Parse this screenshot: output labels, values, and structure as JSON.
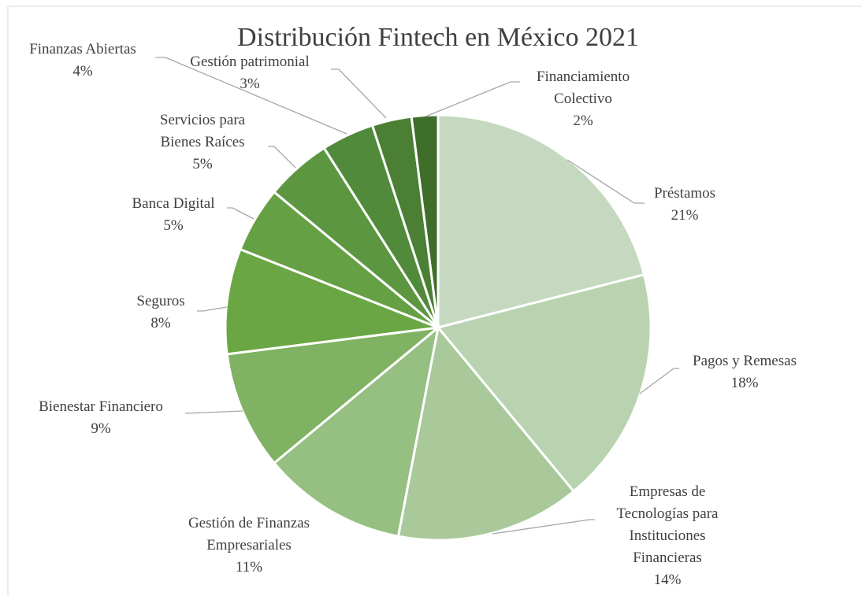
{
  "chart_data": {
    "type": "pie",
    "title": "Distribución Fintech en México 2021",
    "categories": [
      "Préstamos",
      "Pagos y Remesas",
      "Empresas de Tecnologías para Instituciones Financieras",
      "Gestión de Finanzas Empresariales",
      "Bienestar Financiero",
      "Seguros",
      "Banca Digital",
      "Servicios para Bienes Raíces",
      "Finanzas Abiertas",
      "Gestión patrimonial",
      "Financiamiento Colectivo"
    ],
    "values": [
      21,
      18,
      14,
      11,
      9,
      8,
      5,
      5,
      4,
      3,
      2
    ],
    "value_labels": [
      "21%",
      "18%",
      "14%",
      "11%",
      "9%",
      "8%",
      "5%",
      "5%",
      "4%",
      "3%",
      "2%"
    ],
    "colors": [
      "#c5d9c0",
      "#b9d3b0",
      "#a9c99b",
      "#96bf82",
      "#7fb263",
      "#6aa744",
      "#66a044",
      "#5c9640",
      "#518a3a",
      "#4a7f34",
      "#3f6e2b"
    ]
  }
}
